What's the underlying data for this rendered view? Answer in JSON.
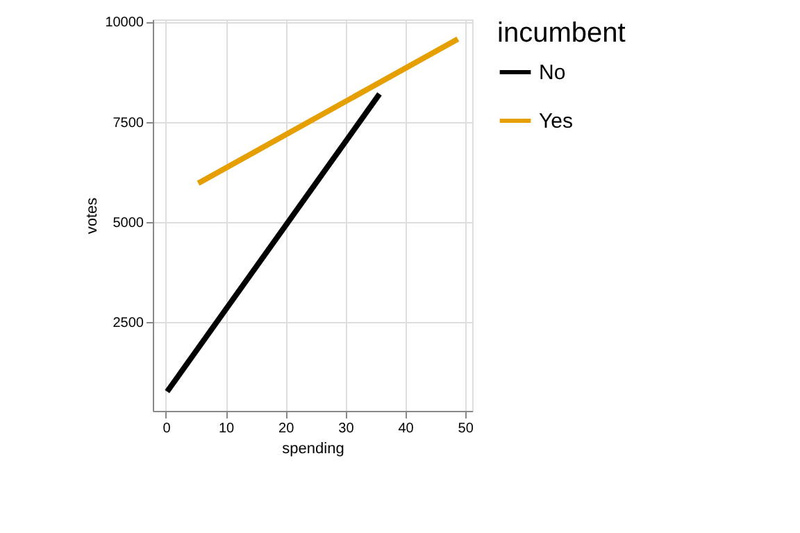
{
  "chart_data": {
    "type": "line",
    "xlabel": "spending",
    "ylabel": "votes",
    "legend_title": "incumbent",
    "series": [
      {
        "name": "No",
        "color": "#000000",
        "x": [
          0.2,
          35.7
        ],
        "values": [
          770,
          8200
        ]
      },
      {
        "name": "Yes",
        "color": "#e69f00",
        "x": [
          5.4,
          48.8
        ],
        "values": [
          5970,
          9570
        ]
      }
    ],
    "xlim": [
      -2.2,
      51.2
    ],
    "xticks": [
      0,
      10,
      20,
      30,
      40,
      50
    ],
    "ylim": [
      290,
      10060
    ],
    "yticks": [
      2500,
      5000,
      7500,
      10000
    ],
    "grid": true,
    "legend": "right",
    "marker": "none",
    "line_style": "solid"
  }
}
